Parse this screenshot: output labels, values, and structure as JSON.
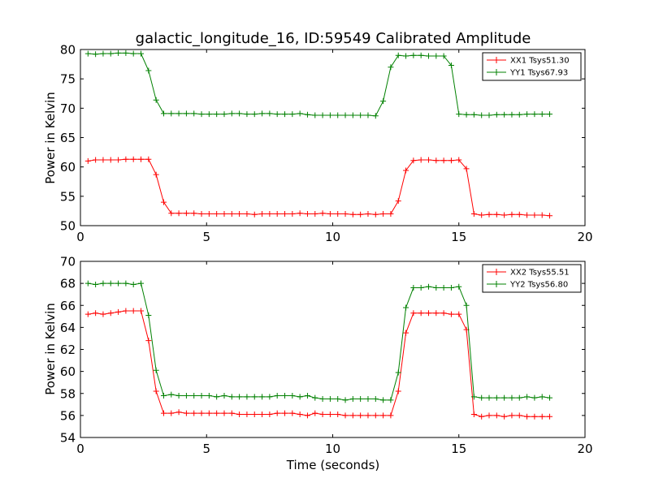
{
  "chart_data": [
    {
      "type": "line",
      "title": "galactic_longitude_16, ID:59549 Calibrated Amplitude",
      "xlabel": "",
      "ylabel": "Power in Kelvin",
      "xlim": [
        0,
        20
      ],
      "ylim": [
        50,
        80
      ],
      "xticks": [
        "0",
        "5",
        "10",
        "15",
        "20"
      ],
      "yticks": [
        "50",
        "55",
        "60",
        "65",
        "70",
        "75",
        "80"
      ],
      "legend_position": "top-right",
      "x": [
        0.3,
        0.6,
        0.9,
        1.2,
        1.5,
        1.8,
        2.1,
        2.4,
        2.7,
        3.0,
        3.3,
        3.6,
        3.9,
        4.2,
        4.5,
        4.8,
        5.1,
        5.4,
        5.7,
        6.0,
        6.3,
        6.6,
        6.9,
        7.2,
        7.5,
        7.8,
        8.1,
        8.4,
        8.7,
        9.0,
        9.3,
        9.6,
        9.9,
        10.2,
        10.5,
        10.8,
        11.1,
        11.4,
        11.7,
        12.0,
        12.3,
        12.6,
        12.9,
        13.2,
        13.5,
        13.8,
        14.1,
        14.4,
        14.7,
        15.0,
        15.3,
        15.6,
        15.9,
        16.2,
        16.5,
        16.8,
        17.1,
        17.4,
        17.7,
        18.0,
        18.3,
        18.6
      ],
      "series": [
        {
          "name": "XX1 Tsys51.30",
          "color": "#ff0000",
          "values": [
            61.0,
            61.2,
            61.2,
            61.2,
            61.2,
            61.3,
            61.3,
            61.3,
            61.3,
            58.7,
            54.0,
            52.1,
            52.1,
            52.1,
            52.1,
            52.0,
            52.0,
            52.0,
            52.0,
            52.0,
            52.0,
            52.0,
            51.9,
            52.0,
            52.0,
            52.0,
            52.0,
            52.0,
            52.1,
            52.0,
            52.0,
            52.1,
            52.0,
            52.0,
            52.0,
            51.9,
            51.9,
            52.0,
            51.9,
            52.0,
            52.0,
            54.2,
            59.4,
            61.1,
            61.2,
            61.2,
            61.1,
            61.1,
            61.1,
            61.2,
            59.7,
            52.0,
            51.8,
            51.9,
            51.9,
            51.8,
            51.9,
            51.9,
            51.8,
            51.8,
            51.8,
            51.7
          ]
        },
        {
          "name": "YY1 Tsys67.93",
          "color": "#008000",
          "values": [
            79.3,
            79.2,
            79.3,
            79.3,
            79.4,
            79.4,
            79.3,
            79.3,
            76.4,
            71.4,
            69.1,
            69.1,
            69.1,
            69.1,
            69.1,
            69.0,
            69.0,
            69.0,
            69.0,
            69.1,
            69.1,
            69.0,
            69.0,
            69.1,
            69.1,
            69.0,
            69.0,
            69.0,
            69.1,
            68.9,
            68.8,
            68.8,
            68.8,
            68.8,
            68.8,
            68.8,
            68.8,
            68.8,
            68.7,
            71.2,
            77.0,
            79.0,
            78.9,
            79.0,
            79.0,
            78.9,
            78.9,
            78.9,
            77.3,
            69.0,
            68.9,
            68.9,
            68.8,
            68.8,
            68.9,
            68.9,
            68.9,
            68.9,
            69.0,
            69.0,
            69.0,
            69.0
          ]
        }
      ]
    },
    {
      "type": "line",
      "title": "",
      "xlabel": "Time (seconds)",
      "ylabel": "Power in Kelvin",
      "xlim": [
        0,
        20
      ],
      "ylim": [
        54,
        70
      ],
      "xticks": [
        "0",
        "5",
        "10",
        "15",
        "20"
      ],
      "yticks": [
        "54",
        "56",
        "58",
        "60",
        "62",
        "64",
        "66",
        "68",
        "70"
      ],
      "legend_position": "top-right",
      "x": [
        0.3,
        0.6,
        0.9,
        1.2,
        1.5,
        1.8,
        2.1,
        2.4,
        2.7,
        3.0,
        3.3,
        3.6,
        3.9,
        4.2,
        4.5,
        4.8,
        5.1,
        5.4,
        5.7,
        6.0,
        6.3,
        6.6,
        6.9,
        7.2,
        7.5,
        7.8,
        8.1,
        8.4,
        8.7,
        9.0,
        9.3,
        9.6,
        9.9,
        10.2,
        10.5,
        10.8,
        11.1,
        11.4,
        11.7,
        12.0,
        12.3,
        12.6,
        12.9,
        13.2,
        13.5,
        13.8,
        14.1,
        14.4,
        14.7,
        15.0,
        15.3,
        15.6,
        15.9,
        16.2,
        16.5,
        16.8,
        17.1,
        17.4,
        17.7,
        18.0,
        18.3,
        18.6
      ],
      "series": [
        {
          "name": "XX2 Tsys55.51",
          "color": "#ff0000",
          "values": [
            65.2,
            65.3,
            65.2,
            65.3,
            65.4,
            65.5,
            65.5,
            65.5,
            62.8,
            58.2,
            56.2,
            56.2,
            56.3,
            56.2,
            56.2,
            56.2,
            56.2,
            56.2,
            56.2,
            56.2,
            56.1,
            56.1,
            56.1,
            56.1,
            56.1,
            56.2,
            56.2,
            56.2,
            56.1,
            56.0,
            56.2,
            56.1,
            56.1,
            56.1,
            56.0,
            56.0,
            56.0,
            56.0,
            56.0,
            56.0,
            56.0,
            58.2,
            63.5,
            65.3,
            65.3,
            65.3,
            65.3,
            65.3,
            65.2,
            65.2,
            63.8,
            56.1,
            55.9,
            56.0,
            56.0,
            55.9,
            56.0,
            56.0,
            55.9,
            55.9,
            55.9,
            55.9
          ]
        },
        {
          "name": "YY2 Tsys56.80",
          "color": "#008000",
          "values": [
            68.0,
            67.9,
            68.0,
            68.0,
            68.0,
            68.0,
            67.9,
            68.0,
            65.1,
            60.1,
            57.8,
            57.9,
            57.8,
            57.8,
            57.8,
            57.8,
            57.8,
            57.7,
            57.8,
            57.7,
            57.7,
            57.7,
            57.7,
            57.7,
            57.7,
            57.8,
            57.8,
            57.8,
            57.7,
            57.8,
            57.6,
            57.5,
            57.5,
            57.5,
            57.4,
            57.5,
            57.5,
            57.5,
            57.5,
            57.4,
            57.4,
            59.9,
            65.8,
            67.6,
            67.6,
            67.7,
            67.6,
            67.6,
            67.6,
            67.7,
            66.0,
            57.7,
            57.6,
            57.6,
            57.6,
            57.6,
            57.6,
            57.6,
            57.7,
            57.6,
            57.7,
            57.6
          ]
        }
      ]
    }
  ]
}
